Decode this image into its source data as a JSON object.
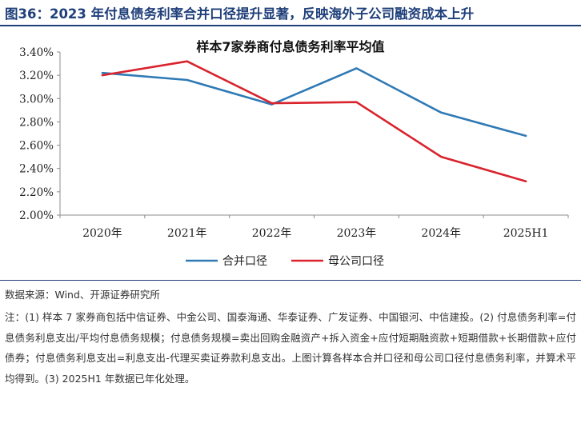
{
  "figure": {
    "title": "图36：2023 年付息债务利率合并口径提升显著，反映海外子公司融资成本上升",
    "source": "数据来源：Wind、开源证券研究所",
    "notes": "注：(1) 样本 7 家券商包括中信证券、中金公司、国泰海通、华泰证券、广发证券、中国银河、中信建投。(2) 付息债务利率=付息债务利息支出/平均付息债务规模；付息债务规模=卖出回购金融资产+拆入资金+应付短期融资款+短期借款+长期借款+应付债券；付息债务利息支出=利息支出-代理买卖证券款利息支出。上图计算各样本合并口径和母公司口径付息债务利率，并算术平均得到。(3) 2025H1 年数据已年化处理。"
  },
  "chart_data": {
    "type": "line",
    "title": "样本7家券商付息债务利率平均值",
    "categories": [
      "2020年",
      "2021年",
      "2022年",
      "2023年",
      "2024年",
      "2025H1"
    ],
    "y_ticks": [
      "2.00%",
      "2.20%",
      "2.40%",
      "2.60%",
      "2.80%",
      "3.00%",
      "3.20%",
      "3.40%"
    ],
    "ylim": [
      2.0,
      3.4
    ],
    "grid": false,
    "legend_position": "bottom",
    "series": [
      {
        "name": "合并口径",
        "color": "#2f7ab5",
        "values": [
          3.22,
          3.16,
          2.95,
          3.26,
          2.88,
          2.68
        ]
      },
      {
        "name": "母公司口径",
        "color": "#d9232d",
        "values": [
          3.2,
          3.32,
          2.96,
          2.97,
          2.5,
          2.29
        ]
      }
    ]
  }
}
